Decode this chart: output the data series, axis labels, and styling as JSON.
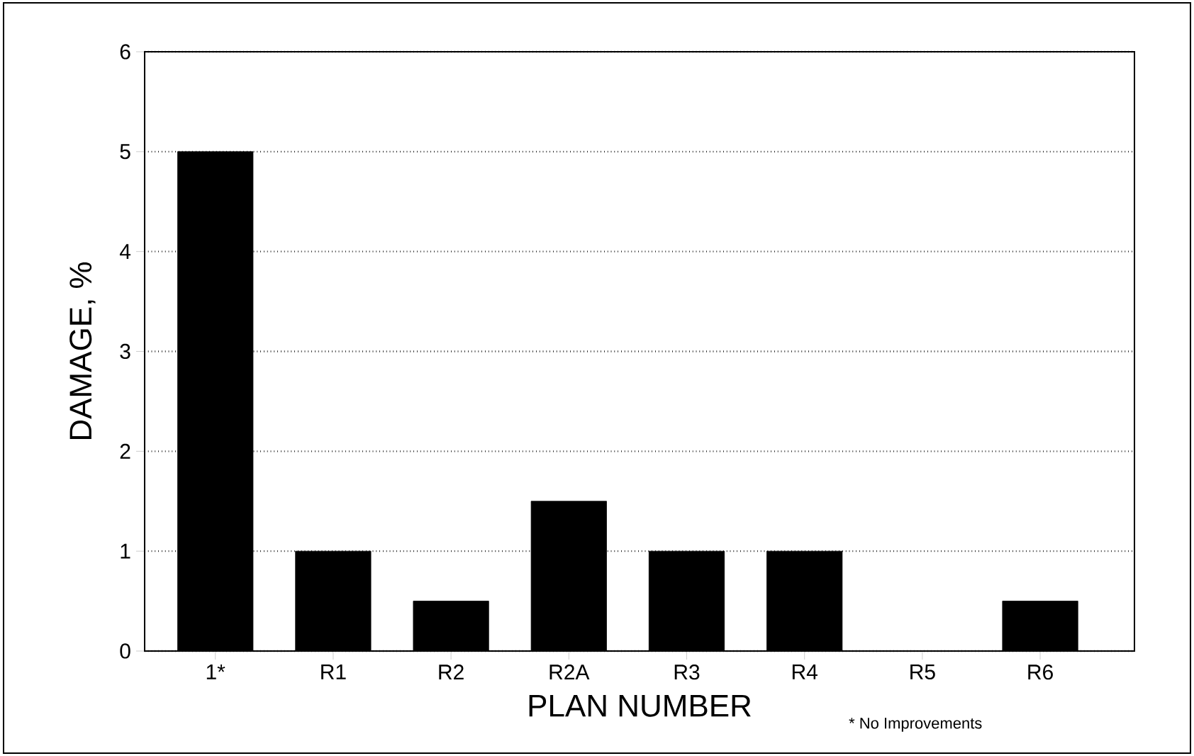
{
  "chart_data": {
    "type": "bar",
    "xlabel": "PLAN NUMBER",
    "ylabel": "DAMAGE, %",
    "categories": [
      "1*",
      "R1",
      "R2",
      "R2A",
      "R3",
      "R4",
      "R5",
      "R6"
    ],
    "values": [
      5,
      1,
      0.5,
      1.5,
      1,
      1,
      0,
      0.5
    ],
    "color": "#000000",
    "ylim": [
      0,
      6
    ],
    "yticks": [
      0,
      1,
      2,
      3,
      4,
      5,
      6
    ],
    "grid": "y",
    "annotations": [
      "* No Improvements"
    ]
  }
}
